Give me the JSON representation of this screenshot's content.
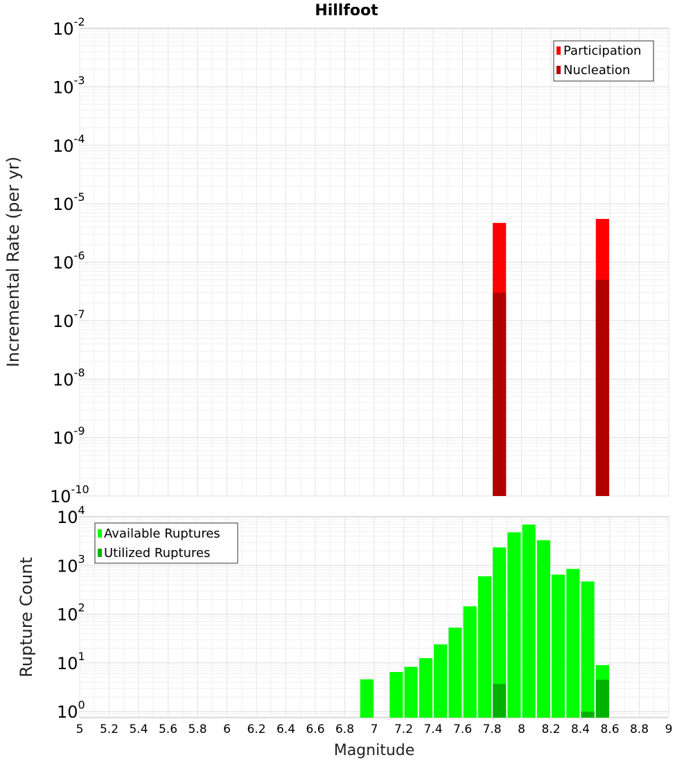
{
  "chart_data": [
    {
      "type": "bar",
      "title": "Hillfoot",
      "xlabel": "Magnitude",
      "ylabel": "Incremental Rate (per yr)",
      "yscale": "log",
      "xlim": [
        5,
        9
      ],
      "ylim": [
        1e-10,
        0.01
      ],
      "ytick_exponents": [
        -2,
        -3,
        -4,
        -5,
        -6,
        -7,
        -8,
        -9,
        -10
      ],
      "grid": true,
      "legend_position": "top-right",
      "bar_width": 0.09,
      "series": [
        {
          "name": "Participation",
          "color": "#ff0000",
          "x": [
            7.85,
            8.55
          ],
          "values": [
            4.7e-06,
            5.5e-06
          ]
        },
        {
          "name": "Nucleation",
          "color": "#b20000",
          "x": [
            7.85,
            8.55
          ],
          "values": [
            3e-07,
            5e-07
          ]
        }
      ]
    },
    {
      "type": "bar",
      "xlabel": "Magnitude",
      "ylabel": "Rupture Count",
      "yscale": "log",
      "xlim": [
        5,
        9
      ],
      "ylim": [
        0.75,
        10000
      ],
      "ytick_exponents": [
        4,
        3,
        2,
        1,
        0
      ],
      "x_ticks": [
        "5",
        "5.2",
        "5.4",
        "5.6",
        "5.8",
        "6",
        "6.2",
        "6.4",
        "6.6",
        "6.8",
        "7",
        "7.2",
        "7.4",
        "7.6",
        "7.8",
        "8",
        "8.2",
        "8.4",
        "8.6",
        "8.8",
        "9"
      ],
      "grid": true,
      "legend_position": "top-left",
      "bar_width": 0.09,
      "series": [
        {
          "name": "Available Ruptures",
          "color": "#00ff00",
          "x": [
            6.95,
            7.15,
            7.25,
            7.35,
            7.45,
            7.55,
            7.65,
            7.75,
            7.85,
            7.95,
            8.05,
            8.15,
            8.25,
            8.35,
            8.45,
            8.55
          ],
          "values": [
            4.6,
            6.5,
            8.3,
            12.5,
            24,
            53,
            145,
            600,
            2350,
            4800,
            6900,
            3300,
            650,
            850,
            470,
            9
          ]
        },
        {
          "name": "Utilized Ruptures",
          "color": "#00b200",
          "x": [
            7.85,
            8.45,
            8.55
          ],
          "values": [
            3.7,
            1,
            4.5
          ]
        }
      ]
    }
  ]
}
